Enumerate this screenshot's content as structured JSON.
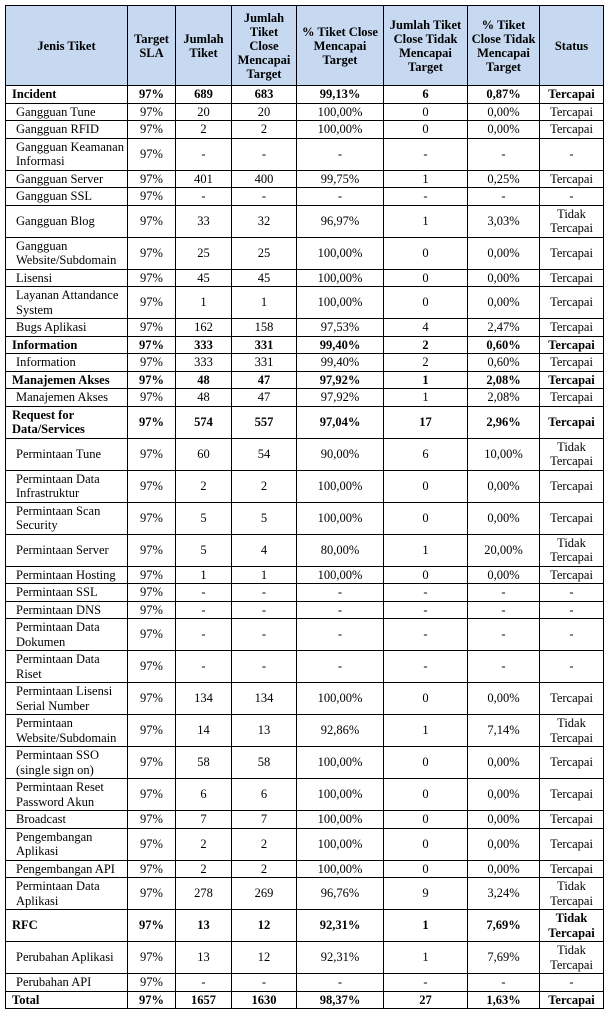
{
  "table": {
    "header": [
      "Jenis Tiket",
      "Target SLA",
      "Jumlah Tiket",
      "Jumlah Tiket Close Mencapai Target",
      "% Tiket Close Mencapai Target",
      "Jumlah Tiket Close Tidak Mencapai Target",
      "% Tiket Close Tidak Mencapai Target",
      "Status"
    ],
    "rows": [
      {
        "bold": true,
        "cells": [
          "Incident",
          "97%",
          "689",
          "683",
          "99,13%",
          "6",
          "0,87%",
          "Tercapai"
        ]
      },
      {
        "cells": [
          "Gangguan Tune",
          "97%",
          "20",
          "20",
          "100,00%",
          "0",
          "0,00%",
          "Tercapai"
        ]
      },
      {
        "cells": [
          "Gangguan RFID",
          "97%",
          "2",
          "2",
          "100,00%",
          "0",
          "0,00%",
          "Tercapai"
        ]
      },
      {
        "cells": [
          "Gangguan Keamanan Informasi",
          "97%",
          "-",
          "-",
          "-",
          "-",
          "-",
          "-"
        ]
      },
      {
        "cells": [
          "Gangguan Server",
          "97%",
          "401",
          "400",
          "99,75%",
          "1",
          "0,25%",
          "Tercapai"
        ]
      },
      {
        "cells": [
          "Gangguan SSL",
          "97%",
          "-",
          "-",
          "-",
          "-",
          "-",
          "-"
        ]
      },
      {
        "cells": [
          "Gangguan Blog",
          "97%",
          "33",
          "32",
          "96,97%",
          "1",
          "3,03%",
          "Tidak Tercapai"
        ]
      },
      {
        "cells": [
          "Gangguan Website/Subdomain",
          "97%",
          "25",
          "25",
          "100,00%",
          "0",
          "0,00%",
          "Tercapai"
        ]
      },
      {
        "cells": [
          "Lisensi",
          "97%",
          "45",
          "45",
          "100,00%",
          "0",
          "0,00%",
          "Tercapai"
        ]
      },
      {
        "cells": [
          "Layanan Attandance System",
          "97%",
          "1",
          "1",
          "100,00%",
          "0",
          "0,00%",
          "Tercapai"
        ]
      },
      {
        "cells": [
          "Bugs Aplikasi",
          "97%",
          "162",
          "158",
          "97,53%",
          "4",
          "2,47%",
          "Tercapai"
        ]
      },
      {
        "bold": true,
        "cells": [
          "Information",
          "97%",
          "333",
          "331",
          "99,40%",
          "2",
          "0,60%",
          "Tercapai"
        ]
      },
      {
        "cells": [
          "Information",
          "97%",
          "333",
          "331",
          "99,40%",
          "2",
          "0,60%",
          "Tercapai"
        ]
      },
      {
        "bold": true,
        "cells": [
          "Manajemen Akses",
          "97%",
          "48",
          "47",
          "97,92%",
          "1",
          "2,08%",
          "Tercapai"
        ]
      },
      {
        "cells": [
          "Manajemen Akses",
          "97%",
          "48",
          "47",
          "97,92%",
          "1",
          "2,08%",
          "Tercapai"
        ]
      },
      {
        "bold": true,
        "cells": [
          "Request for Data/Services",
          "97%",
          "574",
          "557",
          "97,04%",
          "17",
          "2,96%",
          "Tercapai"
        ]
      },
      {
        "cells": [
          "Permintaan Tune",
          "97%",
          "60",
          "54",
          "90,00%",
          "6",
          "10,00%",
          "Tidak Tercapai"
        ]
      },
      {
        "cells": [
          "Permintaan Data Infrastruktur",
          "97%",
          "2",
          "2",
          "100,00%",
          "0",
          "0,00%",
          "Tercapai"
        ]
      },
      {
        "cells": [
          "Permintaan Scan Security",
          "97%",
          "5",
          "5",
          "100,00%",
          "0",
          "0,00%",
          "Tercapai"
        ]
      },
      {
        "cells": [
          "Permintaan Server",
          "97%",
          "5",
          "4",
          "80,00%",
          "1",
          "20,00%",
          "Tidak Tercapai"
        ]
      },
      {
        "cells": [
          "Permintaan Hosting",
          "97%",
          "1",
          "1",
          "100,00%",
          "0",
          "0,00%",
          "Tercapai"
        ]
      },
      {
        "cells": [
          "Permintaan SSL",
          "97%",
          "-",
          "-",
          "-",
          "-",
          "-",
          "-"
        ]
      },
      {
        "cells": [
          "Permintaan DNS",
          "97%",
          "-",
          "-",
          "-",
          "-",
          "-",
          "-"
        ]
      },
      {
        "cells": [
          "Permintaan Data Dokumen",
          "97%",
          "-",
          "-",
          "-",
          "-",
          "-",
          "-"
        ]
      },
      {
        "cells": [
          "Permintaan Data Riset",
          "97%",
          "-",
          "-",
          "-",
          "-",
          "-",
          "-"
        ]
      },
      {
        "cells": [
          "Permintaan Lisensi Serial Number",
          "97%",
          "134",
          "134",
          "100,00%",
          "0",
          "0,00%",
          "Tercapai"
        ]
      },
      {
        "cells": [
          "Permintaan Website/Subdomain",
          "97%",
          "14",
          "13",
          "92,86%",
          "1",
          "7,14%",
          "Tidak Tercapai"
        ]
      },
      {
        "cells": [
          "Permintaan SSO (single sign on)",
          "97%",
          "58",
          "58",
          "100,00%",
          "0",
          "0,00%",
          "Tercapai"
        ]
      },
      {
        "cells": [
          "Permintaan Reset Password Akun",
          "97%",
          "6",
          "6",
          "100,00%",
          "0",
          "0,00%",
          "Tercapai"
        ]
      },
      {
        "cells": [
          "Broadcast",
          "97%",
          "7",
          "7",
          "100,00%",
          "0",
          "0,00%",
          "Tercapai"
        ]
      },
      {
        "cells": [
          "Pengembangan Aplikasi",
          "97%",
          "2",
          "2",
          "100,00%",
          "0",
          "0,00%",
          "Tercapai"
        ]
      },
      {
        "cells": [
          "Pengembangan API",
          "97%",
          "2",
          "2",
          "100,00%",
          "0",
          "0,00%",
          "Tercapai"
        ]
      },
      {
        "cells": [
          "Permintaan Data Aplikasi",
          "97%",
          "278",
          "269",
          "96,76%",
          "9",
          "3,24%",
          "Tidak Tercapai"
        ]
      },
      {
        "bold": true,
        "cells": [
          "RFC",
          "97%",
          "13",
          "12",
          "92,31%",
          "1",
          "7,69%",
          "Tidak Tercapai"
        ]
      },
      {
        "cells": [
          "Perubahan Aplikasi",
          "97%",
          "13",
          "12",
          "92,31%",
          "1",
          "7,69%",
          "Tidak Tercapai"
        ]
      },
      {
        "cells": [
          "Perubahan API",
          "97%",
          "-",
          "-",
          "-",
          "-",
          "-",
          "-"
        ]
      },
      {
        "bold": true,
        "cells": [
          "Total",
          "97%",
          "1657",
          "1630",
          "98,37%",
          "27",
          "1,63%",
          "Tercapai"
        ]
      }
    ]
  }
}
